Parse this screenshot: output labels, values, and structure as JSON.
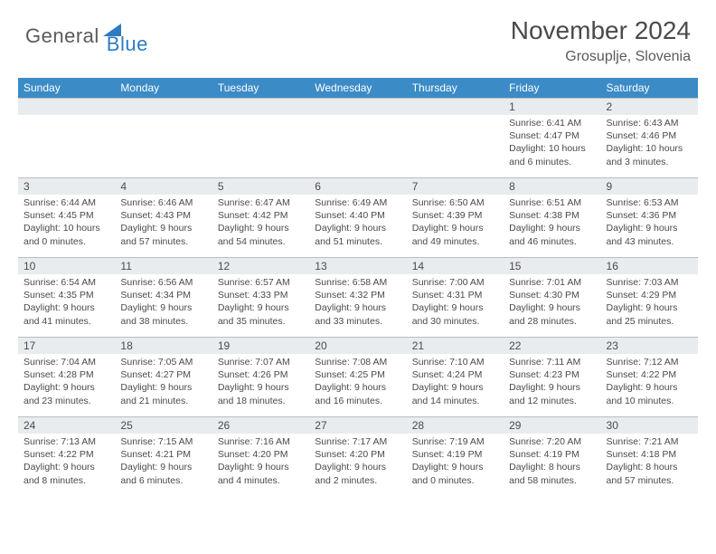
{
  "logo": {
    "text1": "General",
    "text2": "Blue"
  },
  "title": "November 2024",
  "location": "Grosuplje, Slovenia",
  "colors": {
    "header_bg": "#3b8bc6",
    "header_text": "#ffffff",
    "daynum_bg": "#e9ecef",
    "text": "#4a4a4a",
    "border": "#bcbcbc",
    "logo_gray": "#5a5a5a",
    "logo_blue": "#2d7cc0",
    "triangle": "#2d7cc0"
  },
  "day_headers": [
    "Sunday",
    "Monday",
    "Tuesday",
    "Wednesday",
    "Thursday",
    "Friday",
    "Saturday"
  ],
  "weeks": [
    [
      null,
      null,
      null,
      null,
      null,
      {
        "n": "1",
        "sunrise": "Sunrise: 6:41 AM",
        "sunset": "Sunset: 4:47 PM",
        "daylight": "Daylight: 10 hours and 6 minutes."
      },
      {
        "n": "2",
        "sunrise": "Sunrise: 6:43 AM",
        "sunset": "Sunset: 4:46 PM",
        "daylight": "Daylight: 10 hours and 3 minutes."
      }
    ],
    [
      {
        "n": "3",
        "sunrise": "Sunrise: 6:44 AM",
        "sunset": "Sunset: 4:45 PM",
        "daylight": "Daylight: 10 hours and 0 minutes."
      },
      {
        "n": "4",
        "sunrise": "Sunrise: 6:46 AM",
        "sunset": "Sunset: 4:43 PM",
        "daylight": "Daylight: 9 hours and 57 minutes."
      },
      {
        "n": "5",
        "sunrise": "Sunrise: 6:47 AM",
        "sunset": "Sunset: 4:42 PM",
        "daylight": "Daylight: 9 hours and 54 minutes."
      },
      {
        "n": "6",
        "sunrise": "Sunrise: 6:49 AM",
        "sunset": "Sunset: 4:40 PM",
        "daylight": "Daylight: 9 hours and 51 minutes."
      },
      {
        "n": "7",
        "sunrise": "Sunrise: 6:50 AM",
        "sunset": "Sunset: 4:39 PM",
        "daylight": "Daylight: 9 hours and 49 minutes."
      },
      {
        "n": "8",
        "sunrise": "Sunrise: 6:51 AM",
        "sunset": "Sunset: 4:38 PM",
        "daylight": "Daylight: 9 hours and 46 minutes."
      },
      {
        "n": "9",
        "sunrise": "Sunrise: 6:53 AM",
        "sunset": "Sunset: 4:36 PM",
        "daylight": "Daylight: 9 hours and 43 minutes."
      }
    ],
    [
      {
        "n": "10",
        "sunrise": "Sunrise: 6:54 AM",
        "sunset": "Sunset: 4:35 PM",
        "daylight": "Daylight: 9 hours and 41 minutes."
      },
      {
        "n": "11",
        "sunrise": "Sunrise: 6:56 AM",
        "sunset": "Sunset: 4:34 PM",
        "daylight": "Daylight: 9 hours and 38 minutes."
      },
      {
        "n": "12",
        "sunrise": "Sunrise: 6:57 AM",
        "sunset": "Sunset: 4:33 PM",
        "daylight": "Daylight: 9 hours and 35 minutes."
      },
      {
        "n": "13",
        "sunrise": "Sunrise: 6:58 AM",
        "sunset": "Sunset: 4:32 PM",
        "daylight": "Daylight: 9 hours and 33 minutes."
      },
      {
        "n": "14",
        "sunrise": "Sunrise: 7:00 AM",
        "sunset": "Sunset: 4:31 PM",
        "daylight": "Daylight: 9 hours and 30 minutes."
      },
      {
        "n": "15",
        "sunrise": "Sunrise: 7:01 AM",
        "sunset": "Sunset: 4:30 PM",
        "daylight": "Daylight: 9 hours and 28 minutes."
      },
      {
        "n": "16",
        "sunrise": "Sunrise: 7:03 AM",
        "sunset": "Sunset: 4:29 PM",
        "daylight": "Daylight: 9 hours and 25 minutes."
      }
    ],
    [
      {
        "n": "17",
        "sunrise": "Sunrise: 7:04 AM",
        "sunset": "Sunset: 4:28 PM",
        "daylight": "Daylight: 9 hours and 23 minutes."
      },
      {
        "n": "18",
        "sunrise": "Sunrise: 7:05 AM",
        "sunset": "Sunset: 4:27 PM",
        "daylight": "Daylight: 9 hours and 21 minutes."
      },
      {
        "n": "19",
        "sunrise": "Sunrise: 7:07 AM",
        "sunset": "Sunset: 4:26 PM",
        "daylight": "Daylight: 9 hours and 18 minutes."
      },
      {
        "n": "20",
        "sunrise": "Sunrise: 7:08 AM",
        "sunset": "Sunset: 4:25 PM",
        "daylight": "Daylight: 9 hours and 16 minutes."
      },
      {
        "n": "21",
        "sunrise": "Sunrise: 7:10 AM",
        "sunset": "Sunset: 4:24 PM",
        "daylight": "Daylight: 9 hours and 14 minutes."
      },
      {
        "n": "22",
        "sunrise": "Sunrise: 7:11 AM",
        "sunset": "Sunset: 4:23 PM",
        "daylight": "Daylight: 9 hours and 12 minutes."
      },
      {
        "n": "23",
        "sunrise": "Sunrise: 7:12 AM",
        "sunset": "Sunset: 4:22 PM",
        "daylight": "Daylight: 9 hours and 10 minutes."
      }
    ],
    [
      {
        "n": "24",
        "sunrise": "Sunrise: 7:13 AM",
        "sunset": "Sunset: 4:22 PM",
        "daylight": "Daylight: 9 hours and 8 minutes."
      },
      {
        "n": "25",
        "sunrise": "Sunrise: 7:15 AM",
        "sunset": "Sunset: 4:21 PM",
        "daylight": "Daylight: 9 hours and 6 minutes."
      },
      {
        "n": "26",
        "sunrise": "Sunrise: 7:16 AM",
        "sunset": "Sunset: 4:20 PM",
        "daylight": "Daylight: 9 hours and 4 minutes."
      },
      {
        "n": "27",
        "sunrise": "Sunrise: 7:17 AM",
        "sunset": "Sunset: 4:20 PM",
        "daylight": "Daylight: 9 hours and 2 minutes."
      },
      {
        "n": "28",
        "sunrise": "Sunrise: 7:19 AM",
        "sunset": "Sunset: 4:19 PM",
        "daylight": "Daylight: 9 hours and 0 minutes."
      },
      {
        "n": "29",
        "sunrise": "Sunrise: 7:20 AM",
        "sunset": "Sunset: 4:19 PM",
        "daylight": "Daylight: 8 hours and 58 minutes."
      },
      {
        "n": "30",
        "sunrise": "Sunrise: 7:21 AM",
        "sunset": "Sunset: 4:18 PM",
        "daylight": "Daylight: 8 hours and 57 minutes."
      }
    ]
  ]
}
